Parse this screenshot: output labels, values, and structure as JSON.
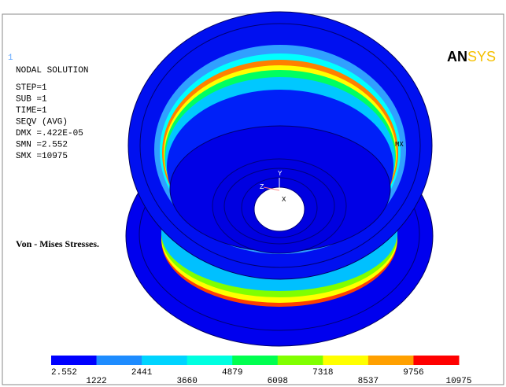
{
  "window_label": "1",
  "info": [
    "NODAL SOLUTION",
    "STEP=1",
    "SUB =1",
    "TIME=1",
    "SEQV      (AVG)",
    "DMX =.422E-05",
    "SMN =2.552",
    "SMX =10975"
  ],
  "logo": {
    "part1": "AN",
    "part2": "SYS"
  },
  "caption": "Von - Mises  Stresses.",
  "max_marker": "MX",
  "axes": {
    "y": "Y",
    "z": "Z",
    "x": "X"
  },
  "legend_labels": [
    "2.552",
    "1222",
    "2441",
    "3660",
    "4879",
    "6098",
    "7318",
    "8537",
    "9756",
    "10975"
  ]
}
